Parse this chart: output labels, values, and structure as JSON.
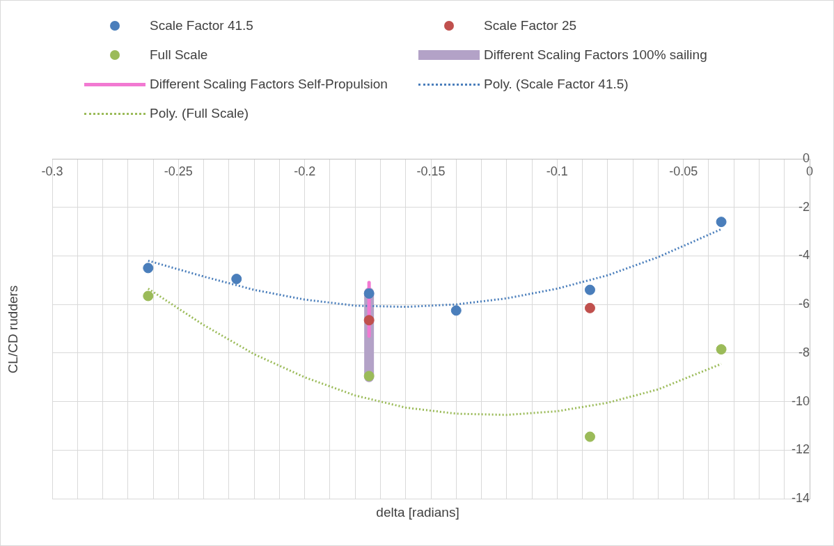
{
  "chart_data": {
    "type": "scatter",
    "xlabel": "delta [radians]",
    "ylabel": "CL/CD rudders",
    "xlim": [
      -0.3,
      0
    ],
    "ylim": [
      -14,
      0
    ],
    "xticks": [
      -0.3,
      {
        "value": -0.29,
        "label": null
      },
      {
        "value": -0.28,
        "label": null
      },
      {
        "value": -0.27,
        "label": null
      },
      {
        "value": -0.26,
        "label": null
      },
      -0.25,
      {
        "value": -0.24,
        "label": null
      },
      {
        "value": -0.23,
        "label": null
      },
      {
        "value": -0.22,
        "label": null
      },
      {
        "value": -0.21,
        "label": null
      },
      -0.2,
      {
        "value": -0.19,
        "label": null
      },
      {
        "value": -0.18,
        "label": null
      },
      {
        "value": -0.17,
        "label": null
      },
      {
        "value": -0.16,
        "label": null
      },
      -0.15,
      {
        "value": -0.14,
        "label": null
      },
      {
        "value": -0.13,
        "label": null
      },
      {
        "value": -0.12,
        "label": null
      },
      {
        "value": -0.11,
        "label": null
      },
      -0.1,
      {
        "value": -0.09,
        "label": null
      },
      {
        "value": -0.08,
        "label": null
      },
      {
        "value": -0.07,
        "label": null
      },
      {
        "value": -0.06,
        "label": null
      },
      -0.05,
      {
        "value": -0.04,
        "label": null
      },
      {
        "value": -0.03,
        "label": null
      },
      {
        "value": -0.02,
        "label": null
      },
      {
        "value": -0.01,
        "label": null
      },
      0
    ],
    "yticks": [
      -14,
      -12,
      -10,
      -8,
      -6,
      -4,
      -2,
      0
    ],
    "grid": true,
    "legend": "top",
    "marker": "circle",
    "series": [
      {
        "name": "Scale Factor 41.5",
        "type": "scatter",
        "color": "#4a7ebb",
        "x": [
          -0.262,
          -0.227,
          -0.1745,
          -0.14,
          -0.087,
          -0.035
        ],
        "values": [
          -4.5,
          -4.95,
          -5.55,
          -6.25,
          -5.4,
          -2.6
        ]
      },
      {
        "name": "Scale Factor 25",
        "type": "scatter",
        "color": "#c0504d",
        "x": [
          -0.1745,
          -0.087
        ],
        "values": [
          -6.65,
          -6.15
        ]
      },
      {
        "name": "Full Scale",
        "type": "scatter",
        "color": "#9bbb59",
        "x": [
          -0.262,
          -0.1745,
          -0.087,
          -0.035
        ],
        "values": [
          -5.65,
          -8.95,
          -11.45,
          -7.85
        ]
      },
      {
        "name": "Different Scaling Factors 100% sailing",
        "type": "line",
        "color": "#b3a2c7",
        "line_style": "solid",
        "marker": "none",
        "x": [
          -0.1745,
          -0.1745
        ],
        "values": [
          -5.5,
          -9.0
        ]
      },
      {
        "name": "Different Scaling Factors Self-Propulsion",
        "type": "line",
        "color": "#f279d2",
        "line_style": "solid",
        "marker": "none",
        "x": [
          -0.1745,
          -0.1745
        ],
        "values": [
          -5.1,
          -7.3
        ]
      },
      {
        "name": "Poly. (Scale Factor 41.5)",
        "type": "line",
        "color": "#4a7ebb",
        "line_style": "dotted",
        "marker": "none",
        "x": [
          -0.262,
          -0.24,
          -0.22,
          -0.2,
          -0.18,
          -0.16,
          -0.14,
          -0.12,
          -0.1,
          -0.08,
          -0.06,
          -0.035
        ],
        "values": [
          -4.2,
          -4.85,
          -5.4,
          -5.8,
          -6.05,
          -6.1,
          -6.0,
          -5.75,
          -5.35,
          -4.8,
          -4.05,
          -2.9
        ]
      },
      {
        "name": "Poly. (Full Scale)",
        "type": "line",
        "color": "#9bbb59",
        "line_style": "dotted",
        "marker": "none",
        "x": [
          -0.262,
          -0.24,
          -0.22,
          -0.2,
          -0.18,
          -0.16,
          -0.14,
          -0.12,
          -0.1,
          -0.08,
          -0.06,
          -0.035
        ],
        "values": [
          -5.35,
          -6.85,
          -8.05,
          -9.0,
          -9.75,
          -10.25,
          -10.5,
          -10.55,
          -10.4,
          -10.05,
          -9.5,
          -8.45
        ]
      }
    ]
  }
}
